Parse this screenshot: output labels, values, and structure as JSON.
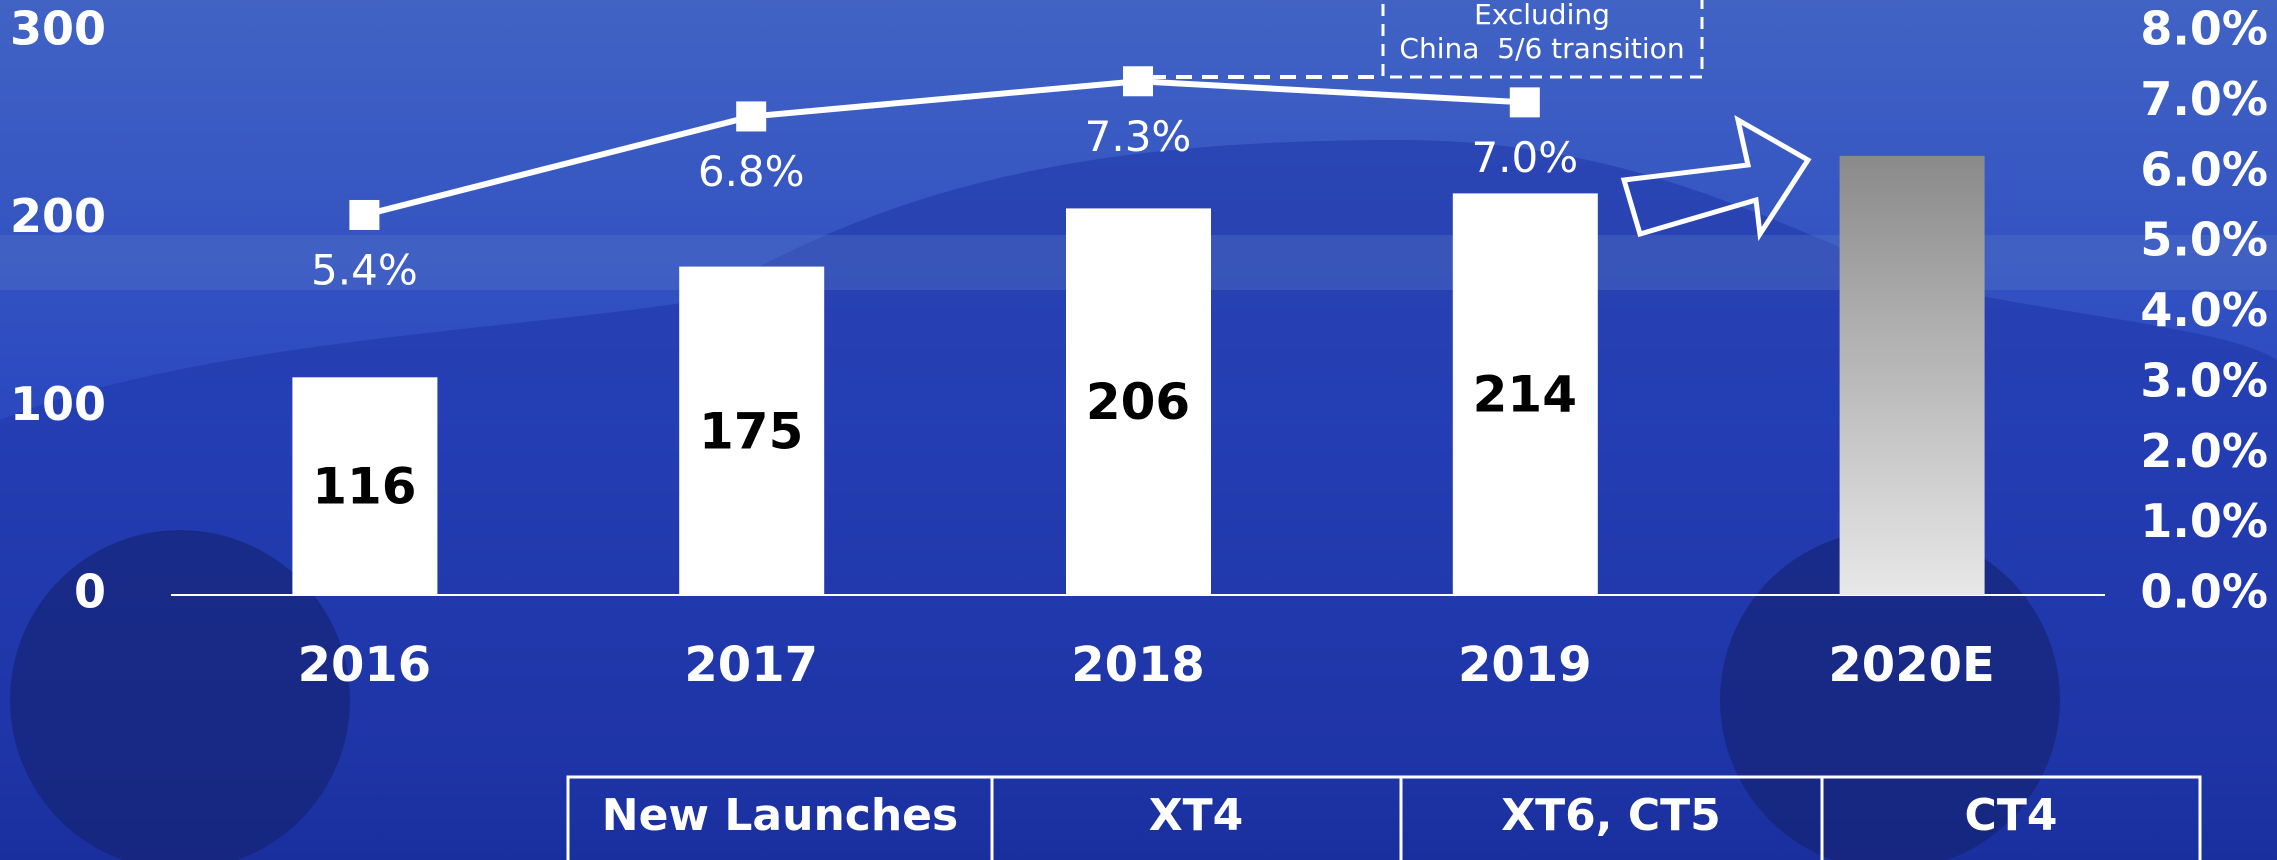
{
  "chart_data": {
    "type": "bar",
    "categories": [
      "2016",
      "2017",
      "2018",
      "2019",
      "2020E"
    ],
    "series": [
      {
        "type": "bar",
        "values": [
          116,
          175,
          206,
          214,
          234
        ],
        "colors": [
          "#ffffff",
          "#ffffff",
          "#ffffff",
          "#ffffff",
          "#8a8a8a"
        ],
        "value_labels": [
          "116",
          "175",
          "206",
          "214",
          null
        ]
      },
      {
        "type": "line",
        "axis": "y2",
        "color": "#ffffff",
        "values": [
          5.4,
          6.8,
          7.3,
          7.0,
          null
        ],
        "value_labels": [
          "5.4%",
          "6.8%",
          "7.3%",
          "7.0%",
          null
        ]
      }
    ],
    "ylim": [
      0,
      300
    ],
    "yticks": [
      0,
      100,
      200,
      300
    ],
    "y2lim": [
      0,
      8
    ],
    "y2ticks": [
      {
        "value": 0,
        "label": "0.0%"
      },
      {
        "value": 1,
        "label": "1.0%"
      },
      {
        "value": 2,
        "label": "2.0%"
      },
      {
        "value": 3,
        "label": "3.0%"
      },
      {
        "value": 4,
        "label": "4.0%"
      },
      {
        "value": 5,
        "label": "5.0%"
      },
      {
        "value": 6,
        "label": "6.0%"
      },
      {
        "value": 7,
        "label": "7.0%"
      },
      {
        "value": 8,
        "label": "8.0%"
      }
    ],
    "grid": false,
    "annotation": [
      "Excluding",
      "China  5/6 transition"
    ],
    "launches": [
      "New Launches",
      "XT4",
      "XT6, CT5",
      "CT4"
    ]
  }
}
